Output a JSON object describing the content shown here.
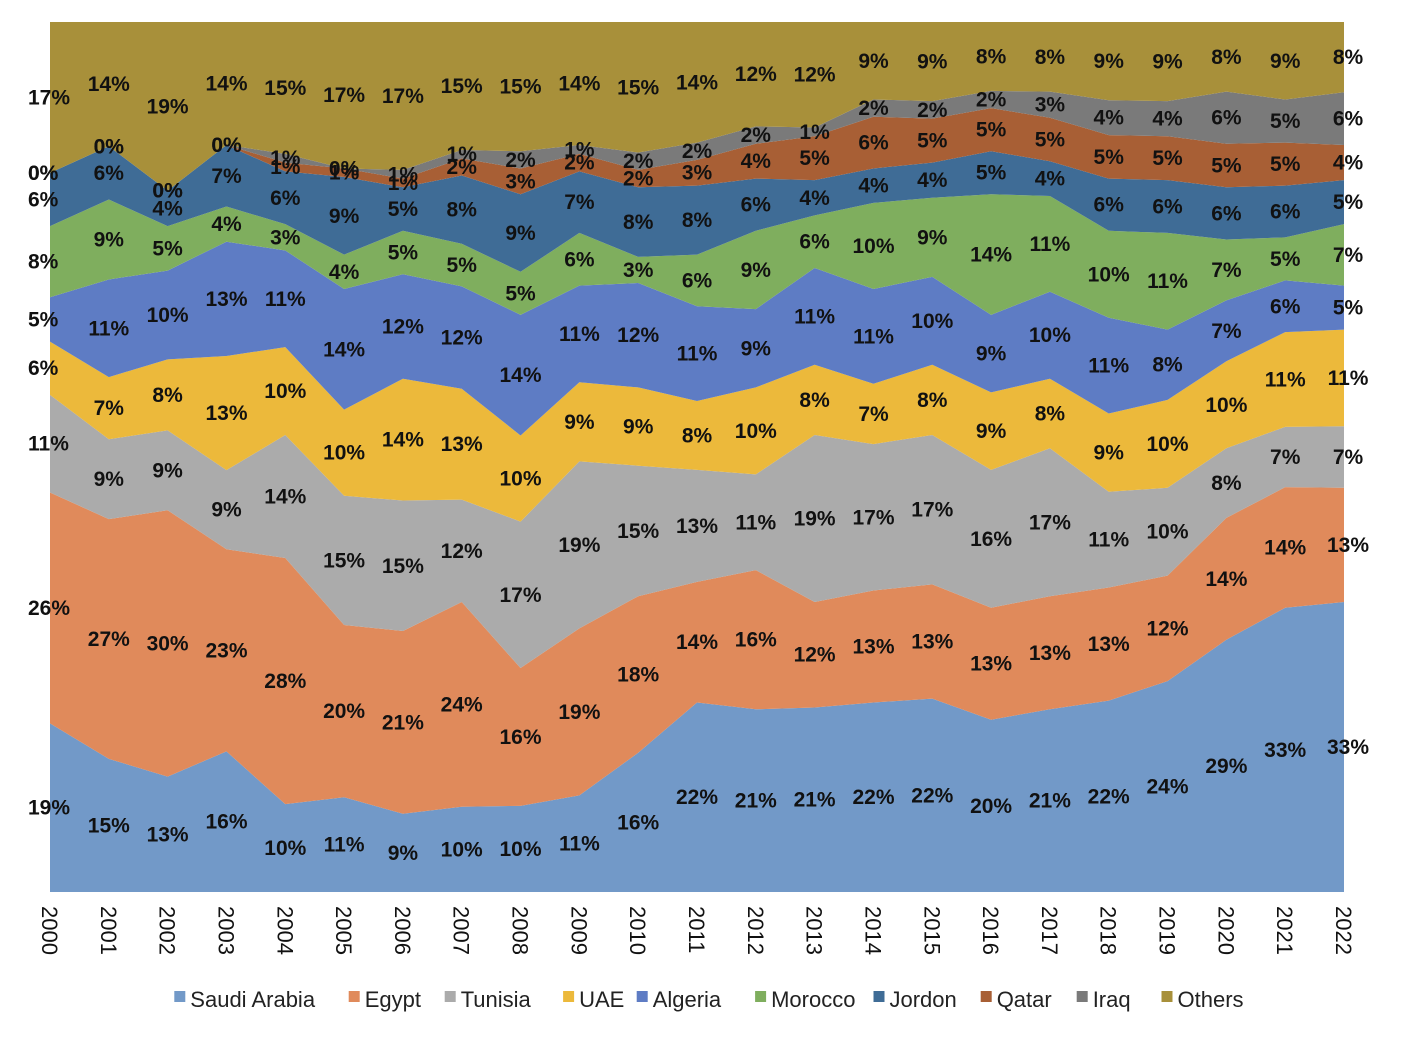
{
  "chart_data": {
    "type": "area",
    "stacked": true,
    "normalized_percent": true,
    "title": "",
    "xlabel": "",
    "ylabel": "",
    "ylim": [
      0,
      100
    ],
    "grid": false,
    "legend_position": "bottom",
    "x": [
      "2000",
      "2001",
      "2002",
      "2003",
      "2004",
      "2005",
      "2006",
      "2007",
      "2008",
      "2009",
      "2010",
      "2011",
      "2012",
      "2013",
      "2014",
      "2015",
      "2016",
      "2017",
      "2018",
      "2019",
      "2020",
      "2021",
      "2022"
    ],
    "series": [
      {
        "name": "Saudi Arabia",
        "color": "#7299C8",
        "values": [
          19,
          15,
          13,
          16,
          10,
          11,
          9,
          10,
          10,
          11,
          16,
          22,
          21,
          21,
          22,
          22,
          20,
          21,
          22,
          24,
          29,
          33,
          33
        ],
        "labels": [
          "19%",
          "15%",
          "13%",
          "16%",
          "10%",
          "11%",
          "9%",
          "10%",
          "10%",
          "11%",
          "16%",
          "22%",
          "21%",
          "21%",
          "22%",
          "22%",
          "20%",
          "21%",
          "22%",
          "24%",
          "29%",
          "33%",
          "33%"
        ]
      },
      {
        "name": "Egypt",
        "color": "#E08A5B",
        "values": [
          26,
          27,
          30,
          23,
          28,
          20,
          21,
          24,
          16,
          19,
          18,
          14,
          16,
          12,
          13,
          13,
          13,
          13,
          13,
          12,
          14,
          14,
          13
        ],
        "labels": [
          "26%",
          "27%",
          "30%",
          "23%",
          "28%",
          "20%",
          "21%",
          "24%",
          "16%",
          "19%",
          "18%",
          "14%",
          "16%",
          "12%",
          "13%",
          "13%",
          "13%",
          "13%",
          "13%",
          "12%",
          "14%",
          "14%",
          "13%"
        ]
      },
      {
        "name": "Tunisia",
        "color": "#ABABAB",
        "values": [
          11,
          9,
          9,
          9,
          14,
          15,
          15,
          12,
          17,
          19,
          15,
          13,
          11,
          19,
          17,
          17,
          16,
          17,
          11,
          10,
          8,
          7,
          7
        ],
        "labels": [
          "11%",
          "9%",
          "9%",
          "9%",
          "14%",
          "15%",
          "15%",
          "12%",
          "17%",
          "19%",
          "15%",
          "13%",
          "11%",
          "19%",
          "17%",
          "17%",
          "16%",
          "17%",
          "11%",
          "10%",
          "8%",
          "7%",
          "7%"
        ]
      },
      {
        "name": "UAE",
        "color": "#ECB93B",
        "values": [
          6,
          7,
          8,
          13,
          10,
          10,
          14,
          13,
          10,
          9,
          9,
          8,
          10,
          8,
          7,
          8,
          9,
          8,
          9,
          10,
          10,
          11,
          11
        ],
        "labels": [
          "6%",
          "7%",
          "8%",
          "13%",
          "10%",
          "10%",
          "14%",
          "13%",
          "10%",
          "9%",
          "9%",
          "8%",
          "10%",
          "8%",
          "7%",
          "8%",
          "9%",
          "8%",
          "9%",
          "10%",
          "10%",
          "11%",
          "11%"
        ]
      },
      {
        "name": "Algeria",
        "color": "#5E7CC4",
        "values": [
          5,
          11,
          10,
          13,
          11,
          14,
          12,
          12,
          14,
          11,
          12,
          11,
          9,
          11,
          11,
          10,
          9,
          10,
          11,
          8,
          7,
          6,
          5
        ],
        "labels": [
          "5%",
          "11%",
          "10%",
          "13%",
          "11%",
          "14%",
          "12%",
          "12%",
          "14%",
          "11%",
          "12%",
          "11%",
          "9%",
          "11%",
          "11%",
          "10%",
          "9%",
          "10%",
          "11%",
          "8%",
          "7%",
          "6%",
          "5%"
        ]
      },
      {
        "name": "Morocco",
        "color": "#7FAE5E",
        "values": [
          8,
          9,
          5,
          4,
          3,
          4,
          5,
          5,
          5,
          6,
          3,
          6,
          9,
          6,
          10,
          9,
          14,
          11,
          10,
          11,
          7,
          5,
          7
        ],
        "labels": [
          "8%",
          "9%",
          "5%",
          "4%",
          "3%",
          "4%",
          "5%",
          "5%",
          "5%",
          "6%",
          "3%",
          "6%",
          "9%",
          "6%",
          "10%",
          "9%",
          "14%",
          "11%",
          "10%",
          "11%",
          "7%",
          "5%",
          "7%"
        ]
      },
      {
        "name": "Jordon",
        "color": "#3F6C96",
        "values": [
          6,
          6,
          4,
          7,
          6,
          9,
          5,
          8,
          9,
          7,
          8,
          8,
          6,
          4,
          4,
          4,
          5,
          4,
          6,
          6,
          6,
          6,
          5
        ],
        "labels": [
          "6%",
          "6%",
          "4%",
          "7%",
          "6%",
          "9%",
          "5%",
          "8%",
          "9%",
          "7%",
          "8%",
          "8%",
          "6%",
          "4%",
          "4%",
          "4%",
          "5%",
          "4%",
          "6%",
          "6%",
          "6%",
          "6%",
          "5%"
        ]
      },
      {
        "name": "Qatar",
        "color": "#A85F35",
        "values": [
          0,
          0,
          0,
          0,
          1,
          1,
          1,
          2,
          3,
          2,
          2,
          3,
          4,
          5,
          6,
          5,
          5,
          5,
          5,
          5,
          5,
          5,
          4
        ],
        "labels": [
          "0%",
          "0%",
          "0%",
          "0%",
          "1%",
          "1%",
          "1%",
          "2%",
          "3%",
          "2%",
          "2%",
          "3%",
          "4%",
          "5%",
          "6%",
          "5%",
          "5%",
          "5%",
          "5%",
          "5%",
          "5%",
          "5%",
          "4%"
        ]
      },
      {
        "name": "Iraq",
        "color": "#7A7A7A",
        "values": [
          0,
          0,
          0,
          0,
          1,
          0,
          1,
          1,
          2,
          1,
          2,
          2,
          2,
          1,
          2,
          2,
          2,
          3,
          4,
          4,
          6,
          5,
          6
        ],
        "labels": [
          "0%",
          "0%",
          "0%",
          "0%",
          "1%",
          "0%",
          "1%",
          "1%",
          "2%",
          "1%",
          "2%",
          "2%",
          "2%",
          "1%",
          "2%",
          "2%",
          "2%",
          "3%",
          "4%",
          "4%",
          "6%",
          "5%",
          "6%"
        ]
      },
      {
        "name": "Others",
        "color": "#A8903A",
        "values": [
          17,
          14,
          19,
          14,
          15,
          17,
          17,
          15,
          15,
          14,
          15,
          14,
          12,
          12,
          9,
          9,
          8,
          8,
          9,
          9,
          8,
          9,
          8
        ],
        "labels": [
          "17%",
          "14%",
          "19%",
          "14%",
          "15%",
          "17%",
          "17%",
          "15%",
          "15%",
          "14%",
          "15%",
          "14%",
          "12%",
          "12%",
          "9%",
          "9%",
          "8%",
          "8%",
          "9%",
          "9%",
          "8%",
          "9%",
          "8%"
        ]
      }
    ]
  }
}
